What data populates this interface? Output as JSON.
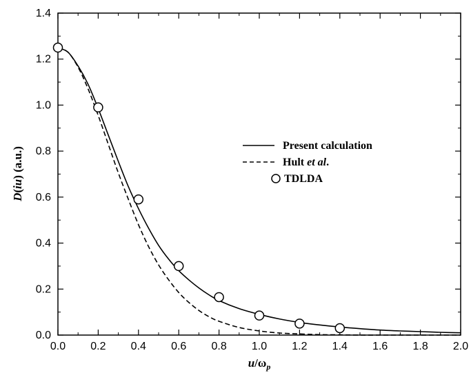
{
  "chart_data": {
    "type": "line",
    "xlabel": "u/ω_p",
    "ylabel": "D(iu) (a.u.)",
    "xlim": [
      0.0,
      2.0
    ],
    "ylim": [
      0.0,
      1.4
    ],
    "x_ticks": [
      "0.0",
      "0.2",
      "0.4",
      "0.6",
      "0.8",
      "1.0",
      "1.2",
      "1.4",
      "1.6",
      "1.8",
      "2.0"
    ],
    "y_ticks": [
      "0.0",
      "0.2",
      "0.4",
      "0.6",
      "0.8",
      "1.0",
      "1.2",
      "1.4"
    ],
    "grid": false,
    "legend_position": "center-right",
    "series": [
      {
        "name": "Present calculation",
        "style": "solid",
        "x": [
          0.0,
          0.05,
          0.1,
          0.15,
          0.2,
          0.25,
          0.3,
          0.35,
          0.4,
          0.45,
          0.5,
          0.55,
          0.6,
          0.65,
          0.7,
          0.75,
          0.8,
          0.9,
          1.0,
          1.1,
          1.2,
          1.3,
          1.4,
          1.5,
          1.6,
          1.7,
          1.8,
          1.9,
          2.0
        ],
        "y": [
          1.25,
          1.23,
          1.17,
          1.09,
          0.985,
          0.87,
          0.755,
          0.645,
          0.55,
          0.465,
          0.39,
          0.33,
          0.28,
          0.24,
          0.205,
          0.175,
          0.15,
          0.115,
          0.09,
          0.07,
          0.055,
          0.044,
          0.035,
          0.028,
          0.022,
          0.018,
          0.015,
          0.012,
          0.01
        ]
      },
      {
        "name": "Hult et al.",
        "style": "dashed",
        "x": [
          0.0,
          0.05,
          0.1,
          0.15,
          0.2,
          0.25,
          0.3,
          0.35,
          0.4,
          0.45,
          0.5,
          0.55,
          0.6,
          0.65,
          0.7,
          0.75,
          0.8,
          0.9,
          1.0,
          1.1,
          1.2,
          1.3,
          1.4,
          1.5,
          1.6,
          1.7,
          1.8,
          1.9,
          2.0
        ],
        "y": [
          1.25,
          1.23,
          1.165,
          1.07,
          0.955,
          0.83,
          0.705,
          0.59,
          0.48,
          0.385,
          0.305,
          0.24,
          0.185,
          0.142,
          0.107,
          0.08,
          0.06,
          0.033,
          0.018,
          0.009,
          0.005,
          0.002,
          0.001,
          0.0,
          0.0,
          0.0,
          0.0,
          0.0,
          0.0
        ]
      },
      {
        "name": "TDLDA",
        "style": "circle",
        "x": [
          0.0,
          0.2,
          0.4,
          0.6,
          0.8,
          1.0,
          1.2,
          1.4
        ],
        "y": [
          1.25,
          0.99,
          0.59,
          0.3,
          0.165,
          0.085,
          0.05,
          0.03
        ]
      }
    ]
  },
  "legend": {
    "entries": [
      {
        "prefix": "Present calculation",
        "italic": "",
        "suffix": ""
      },
      {
        "prefix": "Hult ",
        "italic": "et al",
        "suffix": "."
      },
      {
        "prefix": "TDLDA",
        "italic": "",
        "suffix": ""
      }
    ]
  },
  "labels": {
    "ylabel_D": "D",
    "ylabel_paren_open": "(",
    "ylabel_iu": "iu",
    "ylabel_rest": ") (a.u.)",
    "xlabel_u": "u",
    "xlabel_slash": "/ω",
    "xlabel_sub": "p"
  }
}
